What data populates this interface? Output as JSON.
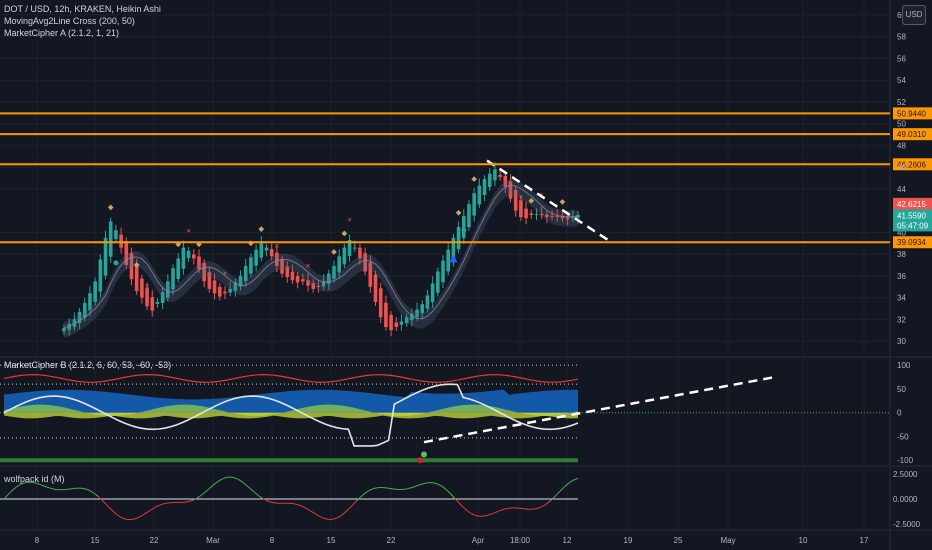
{
  "chart_data": [
    {
      "type": "candlestick",
      "title": "DOT / USD, 12h, KRAKEN, Heikin Ashi",
      "indicators": [
        "MovingAvg2Line Cross (200, 50)",
        "MarketCipher A (2.1.2, 1, 21)"
      ],
      "currency": "USD",
      "y_ticks": [
        30,
        32,
        34,
        36,
        38,
        40,
        44,
        46,
        48,
        50,
        52,
        54,
        56,
        58,
        60
      ],
      "ylim": [
        29,
        61
      ],
      "x_ticks": [
        "8",
        "15",
        "22",
        "Mar",
        "8",
        "15",
        "22",
        "Apr",
        "18:00",
        "12",
        "19",
        "25",
        "May",
        "10",
        "17"
      ],
      "horizontal_levels": [
        50.944,
        49.031,
        46.2606,
        39.0934
      ],
      "horizontal_level_labels": [
        "50.9440",
        "49.0310",
        "46.2606",
        "39.0934"
      ],
      "price_labels": {
        "high": "42.6215",
        "last": "41.5590",
        "countdown": "05:47:09"
      },
      "level_color": "#ff9800",
      "up_color": "#26a69a",
      "down_color": "#ef5350",
      "close_series": [
        31.2,
        31.6,
        32.0,
        32.7,
        33.5,
        34.4,
        35.5,
        37.5,
        39.5,
        41.0,
        40.2,
        38.6,
        37.0,
        35.7,
        34.6,
        34.0,
        33.2,
        32.8,
        33.6,
        34.5,
        35.5,
        36.7,
        37.6,
        38.6,
        38.3,
        37.6,
        36.6,
        35.5,
        34.8,
        34.4,
        34.1,
        34.4,
        34.8,
        35.4,
        36.0,
        36.9,
        37.7,
        38.4,
        39.0,
        38.6,
        37.8,
        36.9,
        36.2,
        35.9,
        35.6,
        35.4,
        35.5,
        35.1,
        34.8,
        35.0,
        35.5,
        36.2,
        36.9,
        37.8,
        38.6,
        39.3,
        38.6,
        37.6,
        36.4,
        35.0,
        33.6,
        32.2,
        31.3,
        31.0,
        31.3,
        31.8,
        32.2,
        32.5,
        32.9,
        33.4,
        34.2,
        35.3,
        36.4,
        37.4,
        38.4,
        39.5,
        40.5,
        41.5,
        42.6,
        43.6,
        44.3,
        44.9,
        45.4,
        45.8,
        45.1,
        44.2,
        43.1,
        42.0,
        41.4,
        41.3,
        41.6,
        41.7,
        41.6,
        41.4,
        41.5,
        41.5,
        41.3,
        41.2,
        41.4,
        41.6
      ]
    },
    {
      "type": "line",
      "title": "MarketCipher B (2.1.2, 6, 60, 53, -60, -53)",
      "y_ticks": [
        100,
        50,
        0,
        -50,
        -100
      ],
      "ylim": [
        -110,
        115
      ]
    },
    {
      "type": "line",
      "title": "wolfpack id (M)",
      "y_ticks": [
        "2.5000",
        "0.0000",
        "-2.5000"
      ],
      "ylim": [
        -3.0,
        3.2
      ]
    }
  ]
}
